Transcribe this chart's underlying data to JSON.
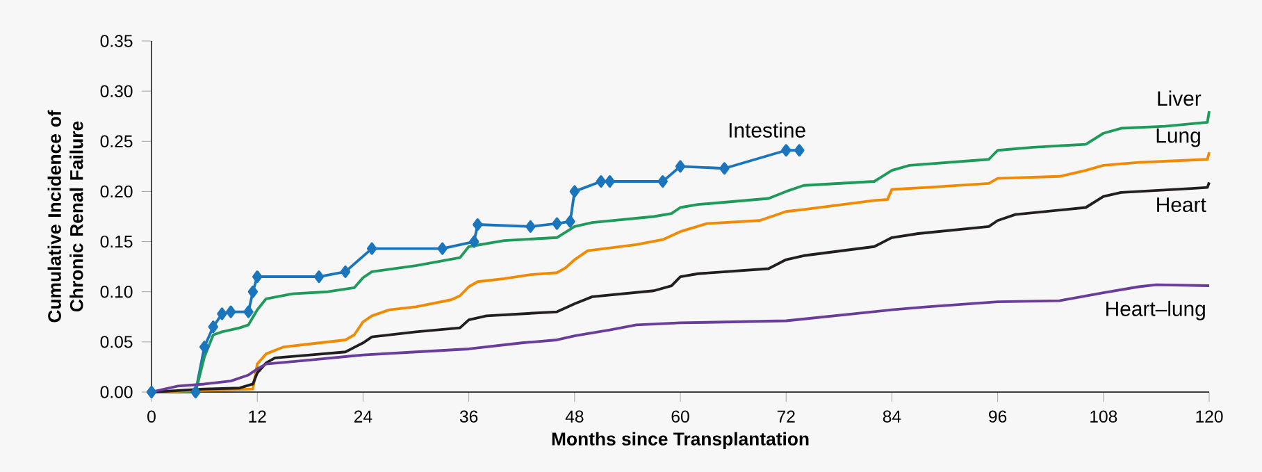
{
  "chart_data": {
    "type": "line",
    "xlabel": "Months since Transplantation",
    "ylabel": "Cumulative Incidence of Chronic Renal Failure",
    "xlim": [
      0,
      120
    ],
    "ylim": [
      0,
      0.35
    ],
    "xticks": [
      0,
      12,
      24,
      36,
      48,
      60,
      72,
      84,
      96,
      108,
      120
    ],
    "yticks": [
      {
        "value": 0,
        "label": "0.00"
      },
      {
        "value": 0.05,
        "label": "0.05"
      },
      {
        "value": 0.1,
        "label": "0.10"
      },
      {
        "value": 0.15,
        "label": "0.15"
      },
      {
        "value": 0.2,
        "label": "0.20"
      },
      {
        "value": 0.25,
        "label": "0.25"
      },
      {
        "value": 0.3,
        "label": "0.30"
      },
      {
        "value": 0.35,
        "label": "0.35"
      }
    ],
    "grid": false,
    "marker": "none",
    "line_style": "solid",
    "series": [
      {
        "name": "Intestine",
        "color": "#1a75bc",
        "marker": "diamond",
        "x": [
          0,
          5,
          6,
          7,
          8,
          9,
          11,
          11.5,
          12,
          19,
          22,
          25,
          33,
          36.6,
          37,
          43,
          46,
          47.5,
          48,
          51,
          52,
          58,
          60,
          65,
          72,
          73.5
        ],
        "values": [
          0,
          0,
          0.045,
          0.065,
          0.078,
          0.08,
          0.08,
          0.1,
          0.115,
          0.115,
          0.12,
          0.143,
          0.143,
          0.15,
          0.167,
          0.165,
          0.168,
          0.17,
          0.2,
          0.21,
          0.21,
          0.21,
          0.225,
          0.223,
          0.241,
          0.241
        ]
      },
      {
        "name": "Liver",
        "color": "#1e9a5a",
        "x": [
          0,
          5,
          6,
          7,
          8,
          10,
          11,
          12,
          13,
          16,
          20,
          23,
          24,
          25,
          30,
          35,
          36,
          40,
          46,
          48,
          50,
          57,
          59,
          60,
          62,
          70,
          72,
          74,
          82,
          84,
          86,
          95,
          96,
          100,
          106,
          108,
          110,
          115,
          119.8,
          120
        ],
        "values": [
          0,
          0,
          0.035,
          0.057,
          0.06,
          0.064,
          0.067,
          0.082,
          0.093,
          0.098,
          0.1,
          0.104,
          0.114,
          0.12,
          0.126,
          0.134,
          0.145,
          0.151,
          0.154,
          0.165,
          0.169,
          0.175,
          0.178,
          0.184,
          0.187,
          0.193,
          0.2,
          0.206,
          0.21,
          0.221,
          0.226,
          0.232,
          0.241,
          0.244,
          0.247,
          0.258,
          0.263,
          0.265,
          0.269,
          0.28
        ]
      },
      {
        "name": "Lung",
        "color": "#f08a00",
        "x": [
          0,
          11.5,
          12,
          13,
          15,
          18,
          22,
          23,
          24,
          25,
          27,
          30,
          34,
          35,
          36,
          37,
          40,
          43,
          46,
          47,
          48,
          49.5,
          55,
          58,
          60,
          63,
          69,
          72,
          74,
          82,
          83.5,
          84,
          88,
          95,
          96,
          103,
          106,
          108,
          112,
          119.8,
          120
        ],
        "values": [
          0,
          0.003,
          0.028,
          0.038,
          0.045,
          0.048,
          0.052,
          0.057,
          0.07,
          0.076,
          0.082,
          0.085,
          0.092,
          0.096,
          0.105,
          0.11,
          0.113,
          0.117,
          0.119,
          0.124,
          0.132,
          0.141,
          0.147,
          0.152,
          0.16,
          0.168,
          0.171,
          0.18,
          0.182,
          0.191,
          0.192,
          0.202,
          0.204,
          0.208,
          0.213,
          0.215,
          0.221,
          0.226,
          0.229,
          0.232,
          0.239
        ]
      },
      {
        "name": "Heart",
        "color": "#231f20",
        "x": [
          0,
          6,
          10,
          11.5,
          12,
          13,
          14,
          18,
          22,
          24,
          25,
          30,
          35,
          36,
          38,
          46,
          48,
          50,
          57,
          59,
          60,
          62,
          70,
          72,
          74,
          82,
          84,
          87,
          95,
          96,
          98,
          106,
          108,
          110,
          118,
          119.8,
          120
        ],
        "values": [
          0,
          0.003,
          0.004,
          0.008,
          0.019,
          0.029,
          0.034,
          0.037,
          0.04,
          0.049,
          0.055,
          0.06,
          0.064,
          0.072,
          0.076,
          0.08,
          0.088,
          0.095,
          0.101,
          0.106,
          0.115,
          0.118,
          0.123,
          0.132,
          0.136,
          0.145,
          0.154,
          0.158,
          0.165,
          0.171,
          0.177,
          0.184,
          0.195,
          0.199,
          0.203,
          0.204,
          0.209
        ]
      },
      {
        "name": "Heart–lung",
        "color": "#6a3d9a",
        "x": [
          0,
          1,
          3,
          6,
          9,
          11,
          12,
          13,
          18,
          24,
          30,
          36,
          42,
          46,
          48,
          52,
          55,
          60,
          72,
          84,
          88,
          96,
          103,
          108,
          112,
          114,
          120
        ],
        "values": [
          0,
          0.002,
          0.006,
          0.008,
          0.011,
          0.017,
          0.023,
          0.028,
          0.032,
          0.037,
          0.04,
          0.043,
          0.049,
          0.052,
          0.056,
          0.062,
          0.067,
          0.069,
          0.071,
          0.082,
          0.085,
          0.09,
          0.091,
          0.099,
          0.105,
          0.107,
          0.106
        ]
      }
    ]
  }
}
